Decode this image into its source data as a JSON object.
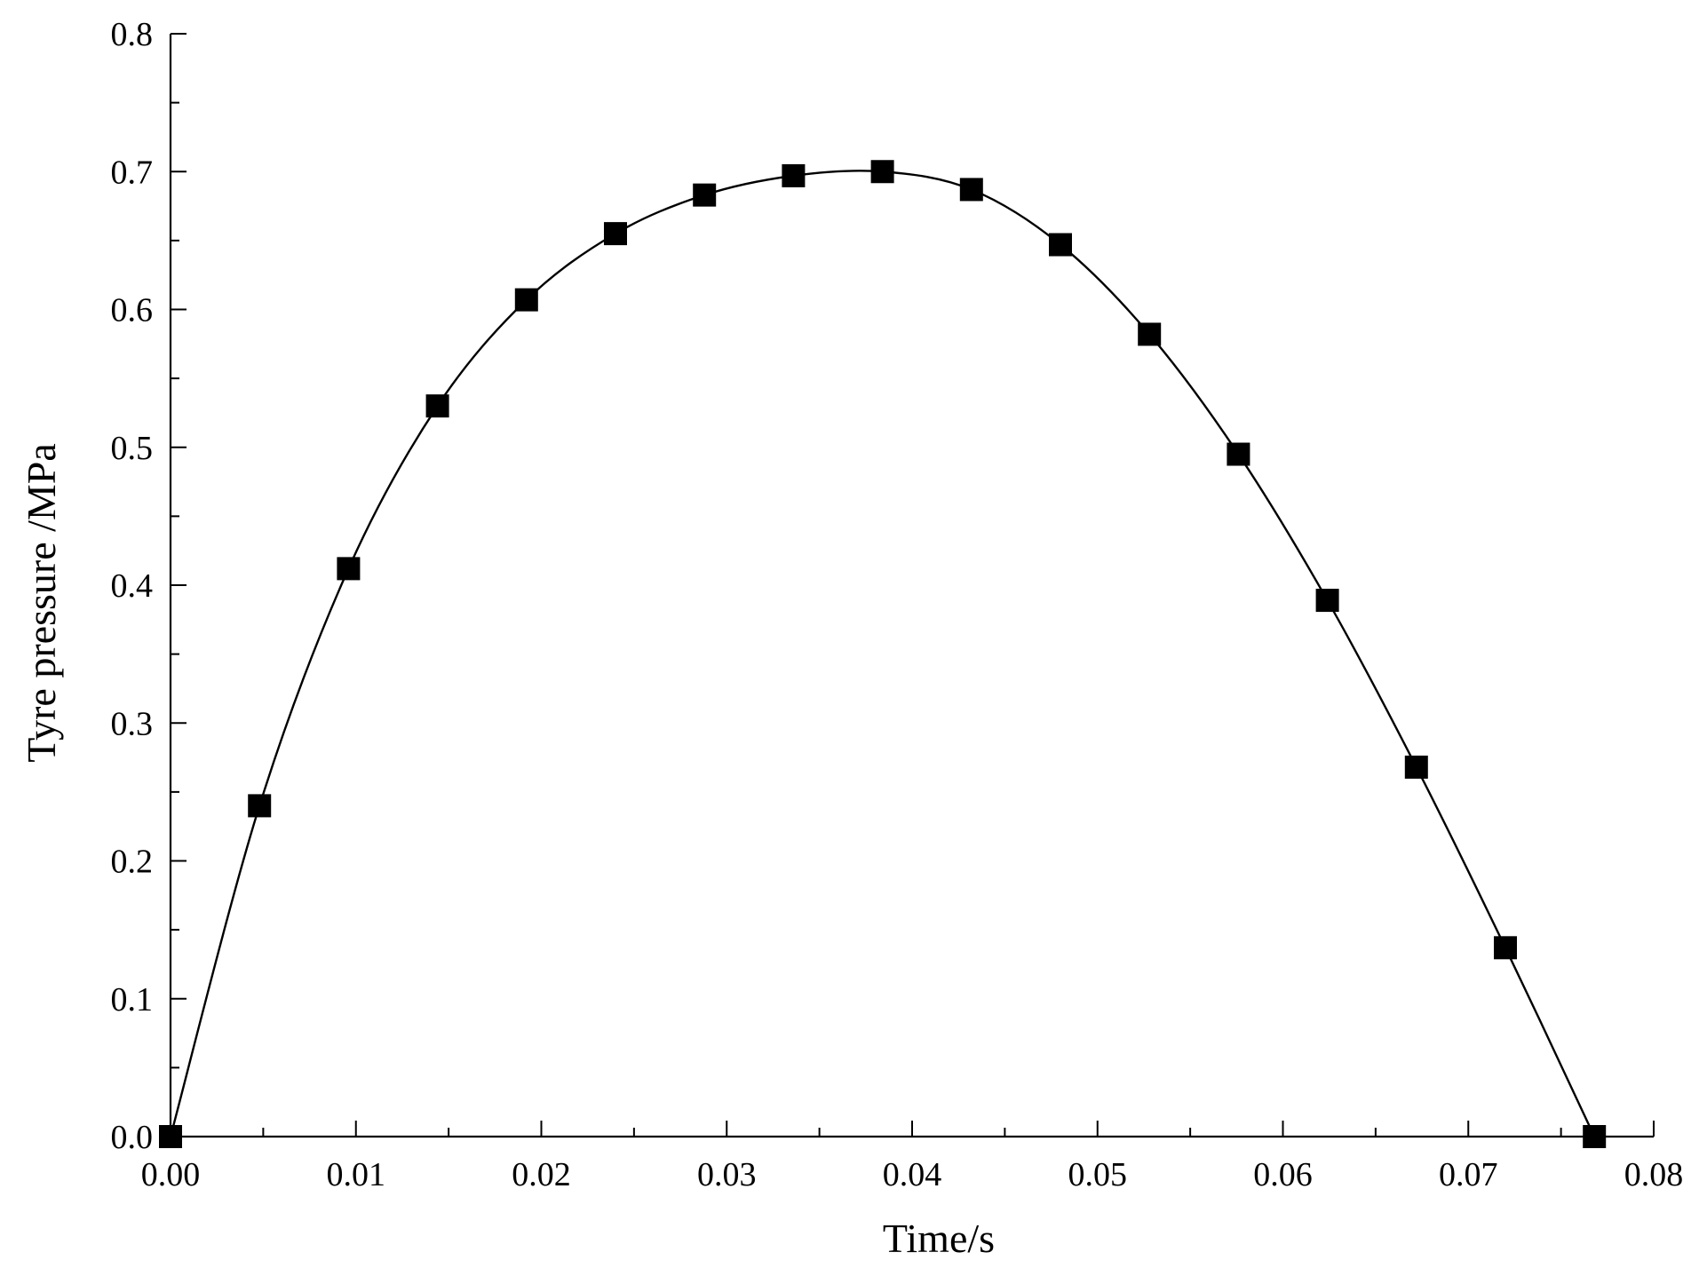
{
  "chart_data": {
    "type": "line",
    "title": "",
    "xlabel": "Time/s",
    "ylabel": "Tyre pressure /MPa",
    "xlim": [
      0.0,
      0.08
    ],
    "ylim": [
      0.0,
      0.8
    ],
    "x_ticks": [
      "0.00",
      "0.01",
      "0.02",
      "0.03",
      "0.04",
      "0.05",
      "0.06",
      "0.07",
      "0.08"
    ],
    "y_ticks": [
      "0.0",
      "0.1",
      "0.2",
      "0.3",
      "0.4",
      "0.5",
      "0.6",
      "0.7",
      "0.8"
    ],
    "grid": false,
    "legend": "none",
    "marker": "square",
    "color": "#000000",
    "series": [
      {
        "x": [
          0.0,
          0.0048,
          0.0096,
          0.0144,
          0.0192,
          0.024,
          0.0288,
          0.0336,
          0.0384,
          0.0432,
          0.048,
          0.0528,
          0.0576,
          0.0624,
          0.0672,
          0.072,
          0.0768
        ],
        "y": [
          0.0,
          0.24,
          0.412,
          0.53,
          0.607,
          0.655,
          0.683,
          0.697,
          0.7,
          0.687,
          0.647,
          0.582,
          0.495,
          0.389,
          0.268,
          0.137,
          0.0
        ]
      }
    ]
  }
}
